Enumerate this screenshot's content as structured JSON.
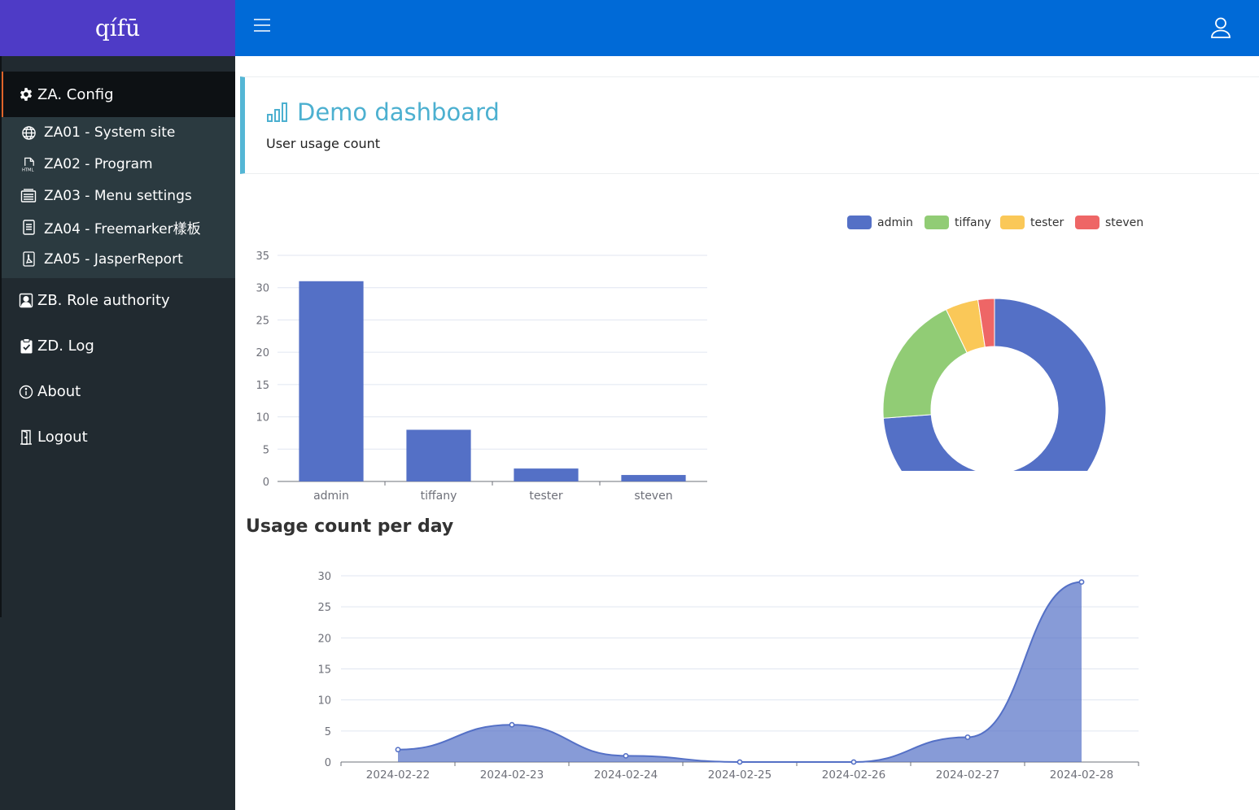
{
  "brand": "qífū",
  "sidebar": {
    "groups": [
      {
        "label": "ZA. Config",
        "icon": "gear-icon",
        "active": true,
        "items": [
          {
            "label": "ZA01 - System site",
            "icon": "globe-icon"
          },
          {
            "label": "ZA02 - Program",
            "icon": "html-file-icon"
          },
          {
            "label": "ZA03 - Menu settings",
            "icon": "menu-list-icon"
          },
          {
            "label": "ZA04 - Freemarker樣板",
            "icon": "document-icon"
          },
          {
            "label": "ZA05 - JasperReport",
            "icon": "pdf-file-icon"
          }
        ]
      },
      {
        "label": "ZB. Role authority",
        "icon": "person-badge-icon"
      },
      {
        "label": "ZD. Log",
        "icon": "clipboard-check-icon"
      },
      {
        "label": "About",
        "icon": "info-circle-icon"
      },
      {
        "label": "Logout",
        "icon": "door-icon"
      }
    ]
  },
  "topbar": {
    "menu_icon": "hamburger-icon",
    "user_icon": "user-icon"
  },
  "header": {
    "title": "Demo dashboard",
    "subtitle": "User usage count",
    "title_icon": "bar-signal-icon"
  },
  "section": {
    "usage_title": "Usage count per day"
  },
  "colors": {
    "bar": "#5470c6",
    "admin": "#5470c6",
    "tiffany": "#91cc75",
    "tester": "#fac858",
    "steven": "#ee6666",
    "sidebar_accent": "#e0642a",
    "topbar": "#006ad7",
    "brand_bg": "#4e3bc6"
  },
  "chart_data": [
    {
      "type": "bar",
      "title": "",
      "categories": [
        "admin",
        "tiffany",
        "tester",
        "steven"
      ],
      "values": [
        31,
        8,
        2,
        1
      ],
      "ylim": [
        0,
        35
      ],
      "yticks": [
        "0",
        "5",
        "10",
        "15",
        "20",
        "25",
        "30",
        "35"
      ]
    },
    {
      "type": "pie",
      "title": "",
      "legend": "top",
      "labels": [
        "admin",
        "tiffany",
        "tester",
        "steven"
      ],
      "values": [
        31,
        8,
        2,
        1
      ]
    },
    {
      "type": "area",
      "title": "Usage count per day",
      "x": [
        "2024-02-22",
        "2024-02-23",
        "2024-02-24",
        "2024-02-25",
        "2024-02-26",
        "2024-02-27",
        "2024-02-28"
      ],
      "values": [
        2,
        6,
        1,
        0,
        0,
        4,
        29
      ],
      "ylim": [
        0,
        30
      ],
      "yticks": [
        "0",
        "5",
        "10",
        "15",
        "20",
        "25",
        "30"
      ]
    }
  ]
}
